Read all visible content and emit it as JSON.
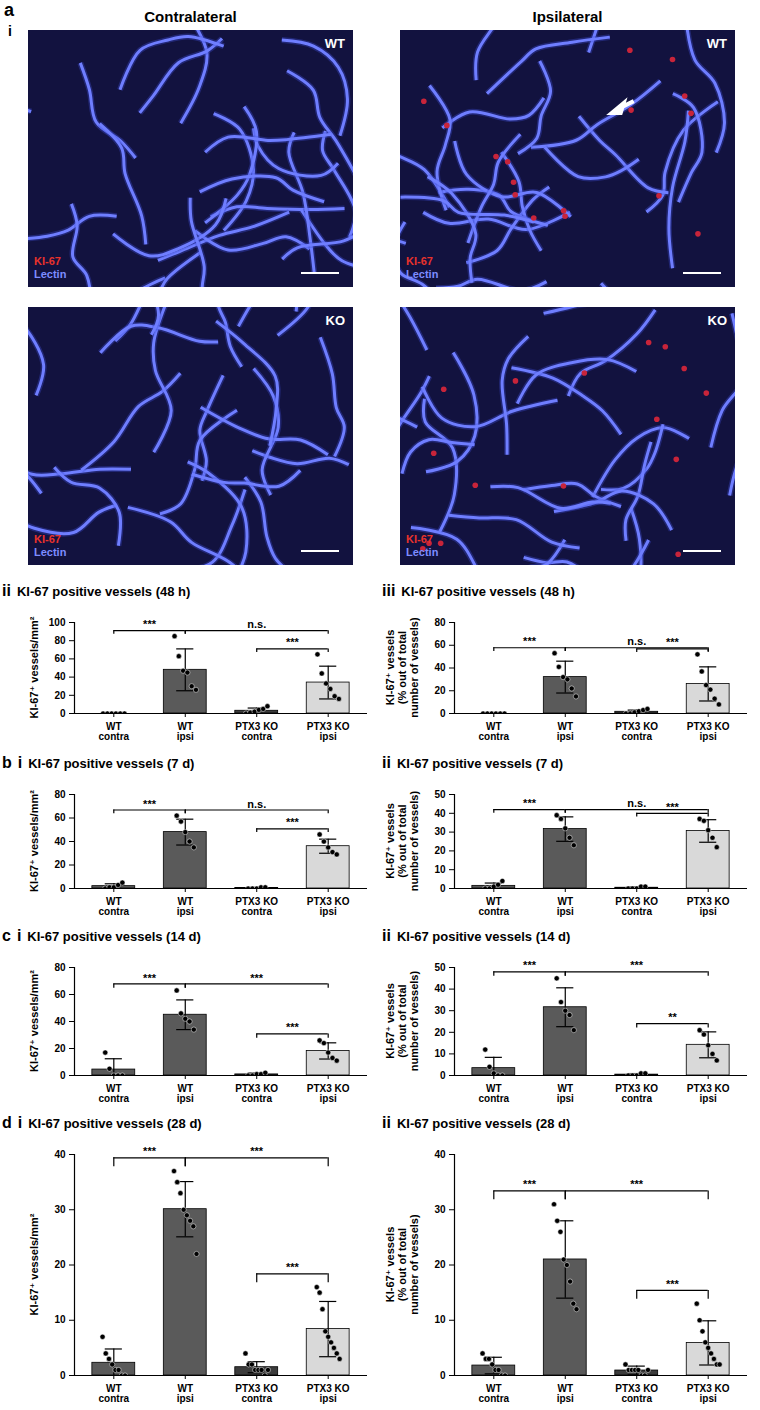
{
  "images": {
    "annotations": [
      "a",
      "i"
    ],
    "columns": [
      "Contralateral",
      "Ipsilateral"
    ],
    "stains": [
      {
        "text": "KI-67",
        "color": "#e8322c"
      },
      {
        "text": "Lectin",
        "color": "#7d8cff"
      }
    ],
    "tiles": [
      {
        "column": "Contralateral",
        "label": "WT",
        "arrow": false
      },
      {
        "column": "Ipsilateral",
        "label": "WT",
        "arrow": true
      },
      {
        "column": "Contralateral",
        "label": "KO",
        "arrow": false
      },
      {
        "column": "Ipsilateral",
        "label": "KO",
        "arrow": false
      }
    ]
  },
  "chart_data": [
    {
      "type": "bar",
      "annotations": [
        "ii"
      ],
      "title": "KI-67 positive vessels (48 h)",
      "ylabel": "KI-67⁺ vessels/mm²",
      "categories": [
        "WT contra",
        "WT ipsi",
        "PTX3 KO contra",
        "PTX3 KO ipsi"
      ],
      "values": [
        0,
        48,
        3,
        34
      ],
      "errors": [
        0,
        23,
        3,
        18
      ],
      "points": [
        [
          0,
          0,
          0,
          0,
          0,
          0
        ],
        [
          85,
          63,
          47,
          45,
          30,
          26
        ],
        [
          0,
          1,
          2,
          4,
          5,
          8
        ],
        [
          65,
          44,
          33,
          27,
          19,
          16
        ]
      ],
      "colors": [
        "#5a5a5a",
        "#5a5a5a",
        "#3c3c3c",
        "#d9d9d9"
      ],
      "significance": [
        {
          "from": "WT contra",
          "to": "WT ipsi",
          "text": "***"
        },
        {
          "from": "WT ipsi",
          "to": "PTX3 KO ipsi",
          "text": "n.s."
        },
        {
          "from": "PTX3 KO contra",
          "to": "PTX3 KO ipsi",
          "text": "***"
        }
      ],
      "ylim": [
        0,
        100
      ],
      "yticks": [
        0,
        20,
        40,
        60,
        80,
        100
      ]
    },
    {
      "type": "bar",
      "annotations": [
        "iii"
      ],
      "title": "KI-67 positive vessels (48 h)",
      "ylabel": "KI-67⁺ vessels (% out of total number of vessels)",
      "categories": [
        "WT contra",
        "WT ipsi",
        "PTX3 KO contra",
        "PTX3 KO ipsi"
      ],
      "values": [
        0,
        32,
        1.5,
        26
      ],
      "errors": [
        0,
        14,
        1.5,
        15
      ],
      "points": [
        [
          0,
          0,
          0,
          0,
          0,
          0
        ],
        [
          53,
          41,
          32,
          30,
          22,
          15
        ],
        [
          0,
          0,
          1,
          2,
          3,
          4
        ],
        [
          52,
          37,
          25,
          21,
          13,
          8
        ]
      ],
      "colors": [
        "#5a5a5a",
        "#5a5a5a",
        "#3c3c3c",
        "#d9d9d9"
      ],
      "significance": [
        {
          "from": "WT contra",
          "to": "WT ipsi",
          "text": "***"
        },
        {
          "from": "WT ipsi",
          "to": "PTX3 KO ipsi",
          "text": "n.s."
        },
        {
          "from": "PTX3 KO contra",
          "to": "PTX3 KO ipsi",
          "text": "***"
        }
      ],
      "ylim": [
        0,
        80
      ],
      "yticks": [
        0,
        20,
        40,
        60,
        80
      ]
    },
    {
      "type": "bar",
      "annotations": [
        "b",
        "i"
      ],
      "title": "KI-67 positive vessels (7 d)",
      "ylabel": "KI-67⁺ vessels/mm²",
      "categories": [
        "WT contra",
        "WT ipsi",
        "PTX3 KO contra",
        "PTX3 KO ipsi"
      ],
      "values": [
        2,
        48,
        0.4,
        36
      ],
      "errors": [
        2,
        11,
        0.5,
        6
      ],
      "points": [
        [
          0,
          1,
          1,
          3,
          5
        ],
        [
          62,
          57,
          48,
          40,
          35
        ],
        [
          0,
          0,
          0,
          1,
          1
        ],
        [
          46,
          40,
          35,
          31,
          29
        ]
      ],
      "colors": [
        "#5a5a5a",
        "#5a5a5a",
        "#3c3c3c",
        "#d9d9d9"
      ],
      "significance": [
        {
          "from": "WT contra",
          "to": "WT ipsi",
          "text": "***"
        },
        {
          "from": "WT ipsi",
          "to": "PTX3 KO ipsi",
          "text": "n.s."
        },
        {
          "from": "PTX3 KO contra",
          "to": "PTX3 KO ipsi",
          "text": "***"
        }
      ],
      "ylim": [
        0,
        80
      ],
      "yticks": [
        0,
        20,
        40,
        60,
        80
      ]
    },
    {
      "type": "bar",
      "annotations": [
        "ii"
      ],
      "title": "KI-67 positive vessels (7 d)",
      "ylabel": "KI-67⁺ vessels (% out of total number of vessels)",
      "categories": [
        "WT contra",
        "WT ipsi",
        "PTX3 KO contra",
        "PTX3 KO ipsi"
      ],
      "values": [
        1.4,
        31.6,
        0.4,
        30.6
      ],
      "errors": [
        1.5,
        6.5,
        0.5,
        6
      ],
      "points": [
        [
          0,
          0,
          1,
          2,
          4
        ],
        [
          39,
          37,
          32,
          27,
          23
        ],
        [
          0,
          0,
          0,
          1,
          1
        ],
        [
          37,
          36,
          31,
          27,
          22
        ]
      ],
      "colors": [
        "#5a5a5a",
        "#5a5a5a",
        "#3c3c3c",
        "#d9d9d9"
      ],
      "significance": [
        {
          "from": "WT contra",
          "to": "WT ipsi",
          "text": "***"
        },
        {
          "from": "WT ipsi",
          "to": "PTX3 KO ipsi",
          "text": "n.s."
        },
        {
          "from": "PTX3 KO contra",
          "to": "PTX3 KO ipsi",
          "text": "***"
        }
      ],
      "ylim": [
        0,
        50
      ],
      "yticks": [
        0,
        10,
        20,
        30,
        40,
        50
      ]
    },
    {
      "type": "bar",
      "annotations": [
        "c",
        "i"
      ],
      "title": "KI-67 positive vessels (14 d)",
      "ylabel": "KI-67⁺ vessels/mm²",
      "categories": [
        "WT contra",
        "WT ipsi",
        "PTX3 KO contra",
        "PTX3 KO ipsi"
      ],
      "values": [
        4.4,
        45,
        0.8,
        18.2
      ],
      "errors": [
        8,
        11,
        1,
        6
      ],
      "points": [
        [
          17,
          5,
          0,
          0,
          0
        ],
        [
          63,
          46,
          42,
          40,
          34
        ],
        [
          0,
          0,
          1,
          1,
          2
        ],
        [
          26,
          24,
          17,
          13,
          11
        ]
      ],
      "colors": [
        "#5a5a5a",
        "#5a5a5a",
        "#3c3c3c",
        "#d9d9d9"
      ],
      "significance": [
        {
          "from": "WT contra",
          "to": "WT ipsi",
          "text": "***"
        },
        {
          "from": "WT ipsi",
          "to": "PTX3 KO ipsi",
          "text": "***"
        },
        {
          "from": "PTX3 KO contra",
          "to": "PTX3 KO ipsi",
          "text": "***"
        }
      ],
      "ylim": [
        0,
        80
      ],
      "yticks": [
        0,
        20,
        40,
        60,
        80
      ]
    },
    {
      "type": "bar",
      "annotations": [
        "ii"
      ],
      "title": "KI-67 positive vessels (14 d)",
      "ylabel": "KI-67⁺ vessels (% out of total number of vessels)",
      "categories": [
        "WT contra",
        "WT ipsi",
        "PTX3 KO contra",
        "PTX3 KO ipsi"
      ],
      "values": [
        3.4,
        31.6,
        0.4,
        14.2
      ],
      "errors": [
        5,
        9,
        0.5,
        6
      ],
      "points": [
        [
          12,
          4,
          1,
          0,
          0
        ],
        [
          45,
          34,
          30,
          28,
          21
        ],
        [
          0,
          0,
          0,
          1,
          1
        ],
        [
          21,
          19,
          14,
          10,
          7
        ]
      ],
      "colors": [
        "#5a5a5a",
        "#5a5a5a",
        "#3c3c3c",
        "#d9d9d9"
      ],
      "significance": [
        {
          "from": "WT contra",
          "to": "WT ipsi",
          "text": "***"
        },
        {
          "from": "WT ipsi",
          "to": "PTX3 KO ipsi",
          "text": "***"
        },
        {
          "from": "PTX3 KO contra",
          "to": "PTX3 KO ipsi",
          "text": "**"
        }
      ],
      "ylim": [
        0,
        50
      ],
      "yticks": [
        0,
        10,
        20,
        30,
        40,
        50
      ]
    },
    {
      "type": "bar",
      "annotations": [
        "d",
        "i"
      ],
      "title": "KI-67 positive vessels (28 d)",
      "ylabel": "KI-67⁺ vessels/mm²",
      "categories": [
        "WT contra",
        "WT ipsi",
        "PTX3 KO contra",
        "PTX3 KO ipsi"
      ],
      "values": [
        2.3,
        30.1,
        1.5,
        8.4
      ],
      "errors": [
        2.5,
        5,
        1,
        5
      ],
      "points": [
        [
          7,
          4,
          3,
          2,
          1,
          1,
          0,
          0
        ],
        [
          37,
          35,
          33,
          30,
          29,
          28,
          27,
          22
        ],
        [
          4,
          2,
          2,
          1,
          1,
          1,
          0,
          1
        ],
        [
          16,
          15,
          12,
          8,
          7,
          6,
          5,
          4,
          3
        ]
      ],
      "colors": [
        "#5a5a5a",
        "#5a5a5a",
        "#3c3c3c",
        "#d9d9d9"
      ],
      "significance": [
        {
          "from": "WT contra",
          "to": "WT ipsi",
          "text": "***"
        },
        {
          "from": "WT ipsi",
          "to": "PTX3 KO ipsi",
          "text": "***"
        },
        {
          "from": "PTX3 KO contra",
          "to": "PTX3 KO ipsi",
          "text": "***"
        }
      ],
      "ylim": [
        0,
        40
      ],
      "yticks": [
        0,
        10,
        20,
        30,
        40
      ]
    },
    {
      "type": "bar",
      "annotations": [
        "ii"
      ],
      "title": "KI-67 positive vessels (28 d)",
      "ylabel": "KI-67⁺ vessels (% out of total number of vessels)",
      "categories": [
        "WT contra",
        "WT ipsi",
        "PTX3 KO contra",
        "PTX3 KO ipsi"
      ],
      "values": [
        1.8,
        21,
        0.9,
        5.9
      ],
      "errors": [
        1.5,
        7,
        0.8,
        4
      ],
      "points": [
        [
          4,
          3,
          3,
          2,
          1,
          1,
          0,
          0
        ],
        [
          31,
          28,
          26,
          21,
          20,
          17,
          13,
          12
        ],
        [
          2,
          1,
          1,
          1,
          1,
          0,
          0,
          1
        ],
        [
          13,
          10,
          8,
          6,
          5,
          4,
          3,
          2,
          2
        ]
      ],
      "colors": [
        "#5a5a5a",
        "#5a5a5a",
        "#3c3c3c",
        "#d9d9d9"
      ],
      "significance": [
        {
          "from": "WT contra",
          "to": "WT ipsi",
          "text": "***"
        },
        {
          "from": "WT ipsi",
          "to": "PTX3 KO ipsi",
          "text": "***"
        },
        {
          "from": "PTX3 KO contra",
          "to": "PTX3 KO ipsi",
          "text": "***"
        }
      ],
      "ylim": [
        0,
        40
      ],
      "yticks": [
        0,
        10,
        20,
        30,
        40
      ]
    }
  ]
}
